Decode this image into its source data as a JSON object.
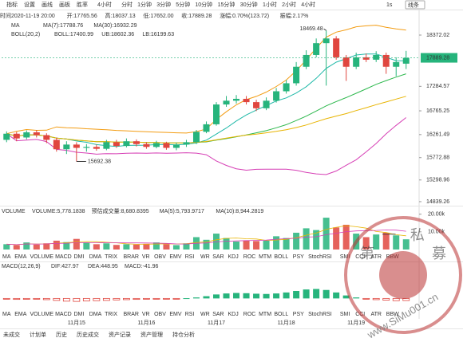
{
  "toolbar": {
    "left": [
      "指标",
      "设置",
      "画线",
      "画板",
      "胜率"
    ],
    "current": "4小时",
    "intervals": [
      "分时",
      "1分钟",
      "3分钟",
      "5分钟",
      "10分钟",
      "15分钟",
      "30分钟",
      "1小时",
      "2小时",
      "4小时"
    ],
    "right": [
      "1s",
      "线条"
    ]
  },
  "info": [
    "时间2020-11-19 20:00",
    "开:17765.56",
    "高:18037.13",
    "低:17652.00",
    "收:17889.28",
    "涨幅:0.70%(123.72)",
    "振幅:2.17%"
  ],
  "ma_legend": {
    "title": "MA",
    "items": [
      {
        "text": "MA(7):17788.76",
        "color": "#1fb9a8"
      },
      {
        "text": "MA(30):16932.29",
        "color": "#e8b400"
      }
    ]
  },
  "boll_legend": {
    "title": "BOLL(20,2)",
    "items": [
      {
        "text": "BOLL:17400.99",
        "color": "#2db84d"
      },
      {
        "text": "UB:18602.36",
        "color": "#f39c12"
      },
      {
        "text": "LB:16199.63",
        "color": "#d63fb5"
      }
    ]
  },
  "chart_data": {
    "type": "candlestick",
    "up_color": "#26b47c",
    "down_color": "#e0463f",
    "categories": [
      null,
      null,
      null,
      null,
      null,
      null,
      null,
      "11月15",
      null,
      null,
      null,
      null,
      null,
      null,
      "11月16",
      null,
      null,
      null,
      null,
      null,
      null,
      "11月17",
      null,
      null,
      null,
      null,
      null,
      null,
      "11月18",
      null,
      null,
      null,
      null,
      null,
      null,
      "11月19",
      null,
      null,
      null,
      null,
      null
    ],
    "open": [
      16150,
      16280,
      16200,
      16310,
      16250,
      16150,
      15950,
      16050,
      15980,
      16000,
      15960,
      16100,
      16020,
      16120,
      16060,
      16000,
      16080,
      15980,
      16050,
      16100,
      16320,
      16480,
      16900,
      16980,
      17020,
      16950,
      16820,
      16980,
      17180,
      17350,
      17700,
      17950,
      18200,
      18300,
      17900,
      17700,
      17900,
      17850,
      17950,
      17700,
      17765.56
    ],
    "high": [
      16330,
      16320,
      16350,
      16360,
      16290,
      16200,
      16120,
      16100,
      16060,
      16050,
      16150,
      16150,
      16180,
      16160,
      16100,
      16130,
      16110,
      16090,
      16150,
      16360,
      16540,
      16950,
      17080,
      17100,
      17080,
      17000,
      17050,
      17250,
      17420,
      17800,
      18050,
      18300,
      18469.48,
      18350,
      17950,
      18000,
      17980,
      18030,
      18000,
      17900,
      18037.13
    ],
    "low": [
      16100,
      16120,
      16160,
      16200,
      16080,
      15900,
      15850,
      15692.38,
      15900,
      15920,
      15930,
      15980,
      15990,
      16010,
      15960,
      15970,
      15940,
      15930,
      16000,
      16060,
      16290,
      16450,
      16850,
      16920,
      16900,
      16760,
      16780,
      16940,
      17130,
      17300,
      17650,
      17900,
      17300,
      17850,
      17400,
      17650,
      17800,
      17800,
      17550,
      17500,
      17652
    ],
    "close": [
      16280,
      16180,
      16310,
      16250,
      16150,
      15950,
      16050,
      15980,
      16000,
      15960,
      16100,
      16020,
      16120,
      16060,
      16000,
      16080,
      15980,
      16050,
      16100,
      16320,
      16480,
      16900,
      16980,
      17020,
      16950,
      16820,
      16980,
      17180,
      17350,
      17700,
      17950,
      18200,
      18300,
      17900,
      17700,
      17900,
      17850,
      17950,
      17700,
      17800,
      17889.28
    ],
    "ylim": [
      14754,
      18913
    ],
    "yticks": [
      18372.02,
      17284.57,
      16765.25,
      16261.49,
      15772.88,
      15298.96,
      14839.26
    ]
  },
  "volume": {
    "title": "VOLUME",
    "active_tab": "VOLUME",
    "texts": [
      {
        "text": "VOLUME:5,778.1838",
        "color": "#333"
      },
      {
        "text": "预估成交量:8,680.8395",
        "color": "#333"
      },
      {
        "text": "MA(5):5,793.9717",
        "color": "#e8b400"
      },
      {
        "text": "MA(10):8,944.2819",
        "color": "#d63fb5"
      }
    ],
    "values": [
      3000,
      2500,
      4000,
      2800,
      3500,
      5000,
      4200,
      6000,
      3800,
      3000,
      3500,
      2600,
      3000,
      2800,
      3200,
      4000,
      3000,
      2500,
      3500,
      7000,
      5500,
      9000,
      6500,
      4500,
      5000,
      4800,
      5000,
      7500,
      6500,
      9500,
      12000,
      11000,
      18000,
      12500,
      14000,
      9000,
      7000,
      8500,
      9500,
      8000,
      5778.1838
    ],
    "ylim": [
      0,
      23000
    ],
    "yticks": [
      {
        "value": 20000,
        "label": "20.00k"
      },
      {
        "value": 10000,
        "label": "10.00k"
      }
    ]
  },
  "macd": {
    "title": "MACD(12,26,9)",
    "active_tab": "MACD",
    "texts": [
      {
        "text": "DIF:427.97",
        "color": "#1fb9a8"
      },
      {
        "text": "DEA:448.95",
        "color": "#e8b400"
      },
      {
        "text": "MACD:-41.96",
        "color": "#d63fb5"
      }
    ],
    "values": [
      -15,
      -20,
      -18,
      -12,
      -25,
      -40,
      -55,
      -60,
      -50,
      -45,
      -40,
      -30,
      -25,
      -20,
      -15,
      -10,
      -8,
      -5,
      5,
      20,
      45,
      80,
      100,
      110,
      105,
      95,
      90,
      100,
      120,
      150,
      180,
      190,
      170,
      120,
      60,
      20,
      -10,
      -25,
      -35,
      -45,
      -41.96
    ],
    "ylim": [
      -250,
      550
    ]
  },
  "tabs": [
    "MA",
    "EMA",
    "VOLUME",
    "MACD",
    "DMI",
    "DMA",
    "TRIX",
    "BRAR",
    "VR",
    "OBV",
    "EMV",
    "RSI",
    "WR",
    "SAR",
    "KDJ",
    "ROC",
    "MTM",
    "BOLL",
    "PSY",
    "StochRSI",
    "SMI",
    "CCI",
    "ATR",
    "BBW"
  ],
  "bottom_tabs": [
    "未成交",
    "计划单",
    "历史",
    "历史成交",
    "资产记录",
    "资产管理",
    "持仓分析"
  ],
  "watermark": {
    "chars": [
      "第",
      "一",
      "私",
      "募"
    ],
    "url": "www.SiMu001.cn"
  }
}
